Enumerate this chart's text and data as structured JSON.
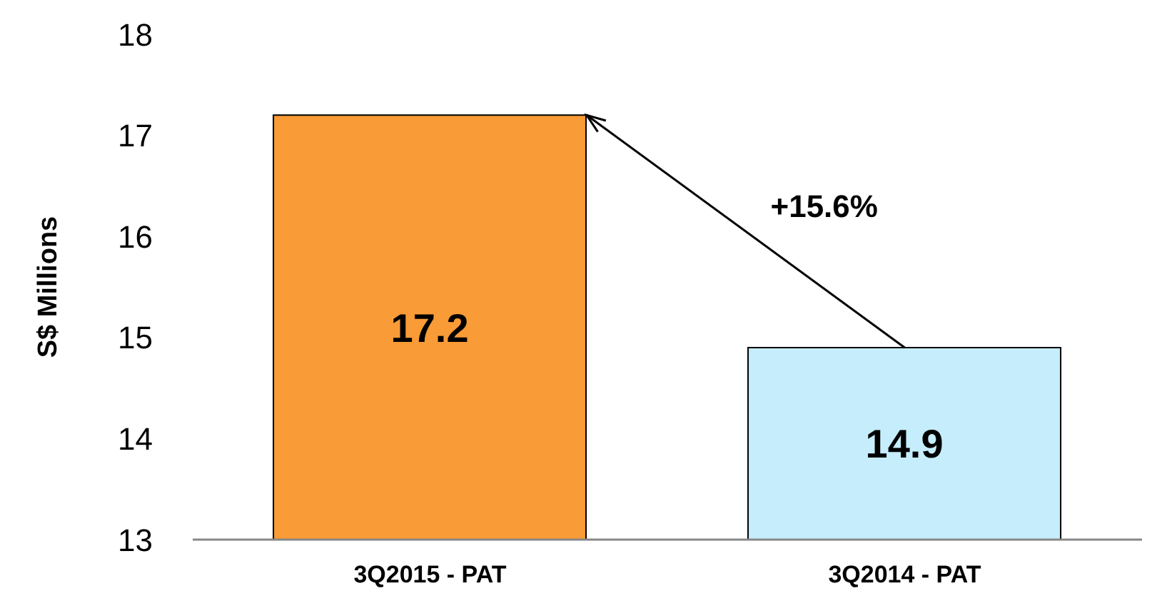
{
  "chart_data": {
    "type": "bar",
    "ylabel": "S$ Millions",
    "categories": [
      "3Q2015 - PAT",
      "3Q2014 - PAT"
    ],
    "values": [
      17.2,
      14.9
    ],
    "colors": [
      "#f99b36",
      "#c6edfb"
    ],
    "ylim": [
      13,
      18
    ],
    "yticks": [
      13,
      14,
      15,
      16,
      17,
      18
    ],
    "data_labels": true,
    "annotations": [
      "+15.6%"
    ]
  }
}
